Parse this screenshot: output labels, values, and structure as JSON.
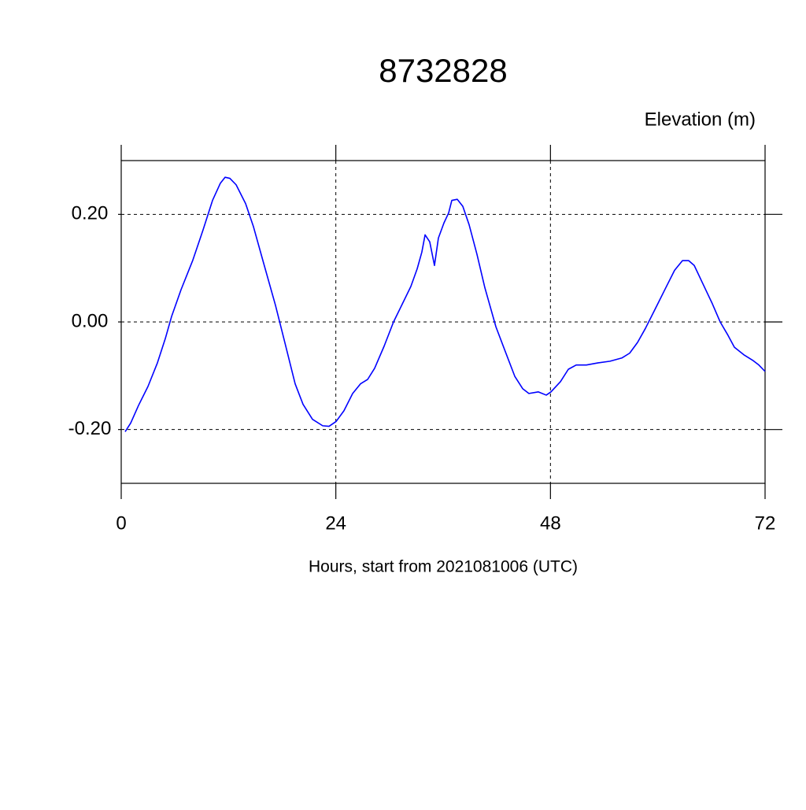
{
  "chart_data": {
    "type": "line",
    "title": "8732828",
    "ylabel": "Elevation (m)",
    "xlabel": "Hours, start from 2021081006 (UTC)",
    "x": [
      0.44,
      1.06,
      1.94,
      2.99,
      4.05,
      4.93,
      5.63,
      6.69,
      8.01,
      9.15,
      10.21,
      11.09,
      11.62,
      12.15,
      12.85,
      13.91,
      14.79,
      15.93,
      17.25,
      18.31,
      19.45,
      20.33,
      21.39,
      22.53,
      23.24,
      24.03,
      24.91,
      25.88,
      26.76,
      27.55,
      28.34,
      29.4,
      30.45,
      31.51,
      32.39,
      33.1,
      33.62,
      33.98,
      34.5,
      35.03,
      35.47,
      36.09,
      36.62,
      36.97,
      37.58,
      38.2,
      38.9,
      39.78,
      40.66,
      41.9,
      42.95,
      44.01,
      44.89,
      45.59,
      46.65,
      47.53,
      48.06,
      49.12,
      50.0,
      50.88,
      52.02,
      53.34,
      54.66,
      55.98,
      56.86,
      57.74,
      58.62,
      59.68,
      60.82,
      61.88,
      62.76,
      63.46,
      64.08,
      64.96,
      66.1,
      66.98,
      67.86,
      68.57,
      69.62,
      70.68,
      71.3,
      72.0
    ],
    "series": [
      {
        "color": "#0000ff",
        "values": [
          -0.204,
          -0.188,
          -0.155,
          -0.12,
          -0.076,
          -0.031,
          0.01,
          0.06,
          0.115,
          0.171,
          0.226,
          0.258,
          0.269,
          0.267,
          0.255,
          0.22,
          0.177,
          0.109,
          0.031,
          -0.039,
          -0.115,
          -0.153,
          -0.181,
          -0.193,
          -0.194,
          -0.185,
          -0.165,
          -0.133,
          -0.115,
          -0.107,
          -0.086,
          -0.045,
          0.0,
          0.036,
          0.066,
          0.099,
          0.13,
          0.162,
          0.149,
          0.105,
          0.156,
          0.184,
          0.203,
          0.226,
          0.228,
          0.215,
          0.181,
          0.126,
          0.064,
          -0.009,
          -0.055,
          -0.101,
          -0.124,
          -0.133,
          -0.13,
          -0.136,
          -0.13,
          -0.111,
          -0.088,
          -0.08,
          -0.08,
          -0.076,
          -0.073,
          -0.067,
          -0.058,
          -0.038,
          -0.012,
          0.023,
          0.061,
          0.096,
          0.114,
          0.114,
          0.105,
          0.074,
          0.034,
          0.0,
          -0.025,
          -0.047,
          -0.061,
          -0.072,
          -0.08,
          -0.092
        ]
      }
    ],
    "xlim": [
      0,
      72
    ],
    "xticks": [
      0,
      24,
      48,
      72
    ],
    "ylim": [
      -0.3,
      0.3
    ],
    "yticks": [
      {
        "value": -0.2,
        "label": "-0.20"
      },
      {
        "value": 0,
        "label": "0.00"
      },
      {
        "value": 0.2,
        "label": "0.20"
      }
    ],
    "grid": true
  }
}
